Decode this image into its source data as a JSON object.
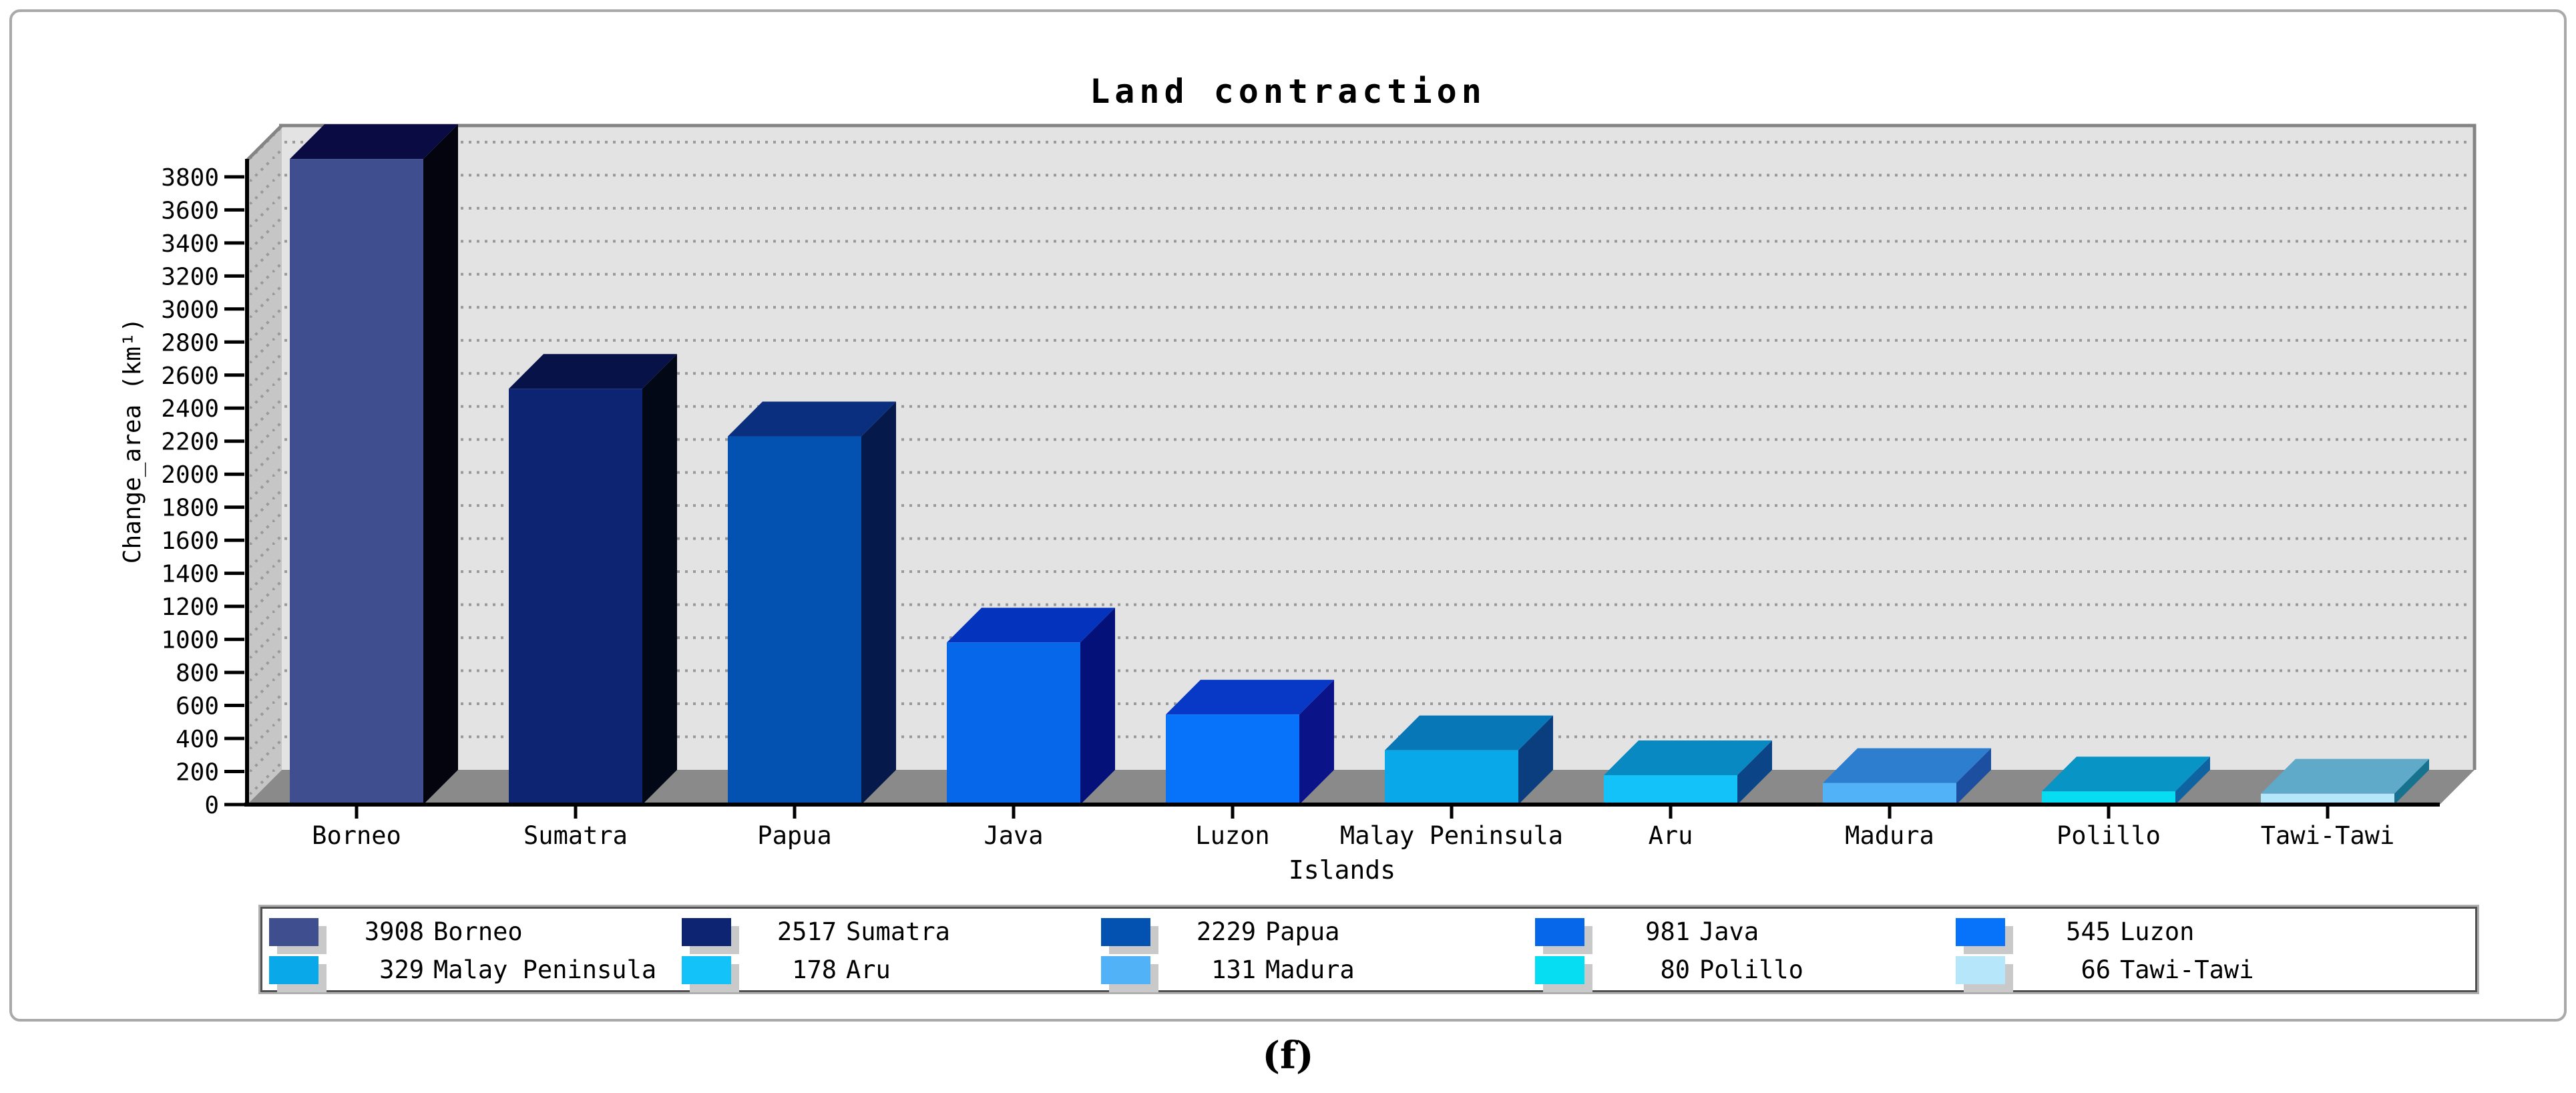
{
  "figure": {
    "caption": "(f)"
  },
  "chart_data": {
    "type": "bar",
    "projection": "3d-oblique",
    "title": "Land contraction",
    "xlabel": "Islands",
    "ylabel": "Change_area (km¹)",
    "ylim": [
      0,
      3800
    ],
    "ytick_step": 200,
    "yticks": [
      0,
      200,
      400,
      600,
      800,
      1000,
      1200,
      1400,
      1600,
      1800,
      2000,
      2200,
      2400,
      2600,
      2800,
      3000,
      3200,
      3400,
      3600,
      3800
    ],
    "grid": "dotted-horizontal",
    "legend_position": "bottom",
    "categories": [
      "Borneo",
      "Sumatra",
      "Papua",
      "Java",
      "Luzon",
      "Malay Peninsula",
      "Aru",
      "Madura",
      "Polillo",
      "Tawi-Tawi"
    ],
    "values": [
      3908,
      2517,
      2229,
      981,
      545,
      329,
      178,
      131,
      80,
      66
    ],
    "bar_colors_front": [
      "#3F4E8E",
      "#0D2472",
      "#0351B0",
      "#0667EA",
      "#0673FA",
      "#09A9E9",
      "#13C2F8",
      "#52B2F8",
      "#06DCF2",
      "#B5E6FA"
    ],
    "bar_colors_top": [
      "#0B0B44",
      "#071348",
      "#0A2F7E",
      "#0434BE",
      "#0838C6",
      "#0877B8",
      "#0989C2",
      "#2E7ED0",
      "#0894C4",
      "#5FA9C9"
    ],
    "bar_colors_side": [
      "#04040F",
      "#030817",
      "#05194A",
      "#041178",
      "#0A1388",
      "#0A3E7E",
      "#0C4488",
      "#1C4FA0",
      "#0E63A0",
      "#16728F"
    ],
    "scene_colors": {
      "back_wall": "#E3E3E3",
      "left_wall": "#C6C6C6",
      "floor": "#8A8A8A",
      "grid_dots": "#999999",
      "frame": "#848484",
      "axis": "#000000",
      "legend_shadow": "#C9C9C9",
      "outer_border": "#A9A9A9"
    }
  }
}
